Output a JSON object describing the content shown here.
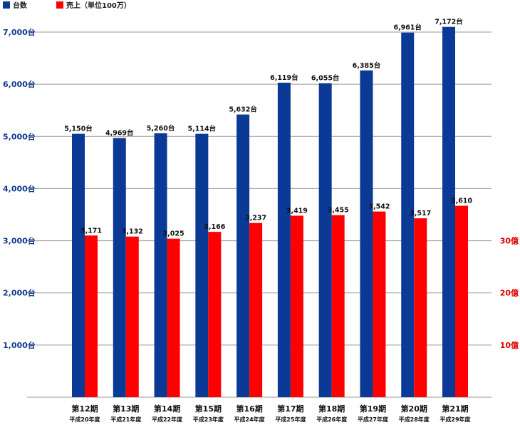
{
  "legend": [
    {
      "label": "台数",
      "color": "#0b3a96"
    },
    {
      "label": "売上（単位100万）",
      "color": "#ff0000"
    }
  ],
  "left_axis_ticks": [
    "1,000台",
    "2,000台",
    "3,000台",
    "4,000台",
    "5,000台",
    "6,000台",
    "7,000台"
  ],
  "right_axis_ticks": [
    "10億",
    "20億",
    "30億"
  ],
  "chart_data": {
    "type": "bar",
    "categories": [
      "第12期",
      "第13期",
      "第14期",
      "第15期",
      "第16期",
      "第17期",
      "第18期",
      "第19期",
      "第20期",
      "第21期"
    ],
    "subcategories": [
      "平成20年度",
      "平成21年度",
      "平成22年度",
      "平成23年度",
      "平成24年度",
      "平成25年度",
      "平成26年度",
      "平成27年度",
      "平成28年度",
      "平成29年度"
    ],
    "series": [
      {
        "name": "台数",
        "color": "#0b3a96",
        "values": [
          5150,
          4969,
          5260,
          5114,
          5632,
          6119,
          6055,
          6385,
          6961,
          7172
        ],
        "display_values": [
          5050,
          4969,
          5060,
          5050,
          5420,
          6030,
          6020,
          6265,
          6990,
          7100
        ],
        "labels": [
          "5,150台",
          "4,969台",
          "5,260台",
          "5,114台",
          "5,632台",
          "6,119台",
          "6,055台",
          "6,385台",
          "6,961台",
          "7,172台"
        ]
      },
      {
        "name": "売上（単位100万）",
        "color": "#ff0000",
        "values": [
          3171,
          3132,
          3025,
          3166,
          3237,
          3419,
          3455,
          3542,
          3517,
          3610
        ],
        "display_values": [
          3100,
          3080,
          3040,
          3170,
          3340,
          3480,
          3490,
          3560,
          3430,
          3670
        ],
        "labels": [
          "3,171",
          "3,132",
          "3,025",
          "3,166",
          "3,237",
          "3,419",
          "3,455",
          "3,542",
          "3,517",
          "3,610"
        ]
      }
    ],
    "ylim": [
      0,
      7000
    ],
    "grid": true,
    "legend_position": "top-left"
  }
}
